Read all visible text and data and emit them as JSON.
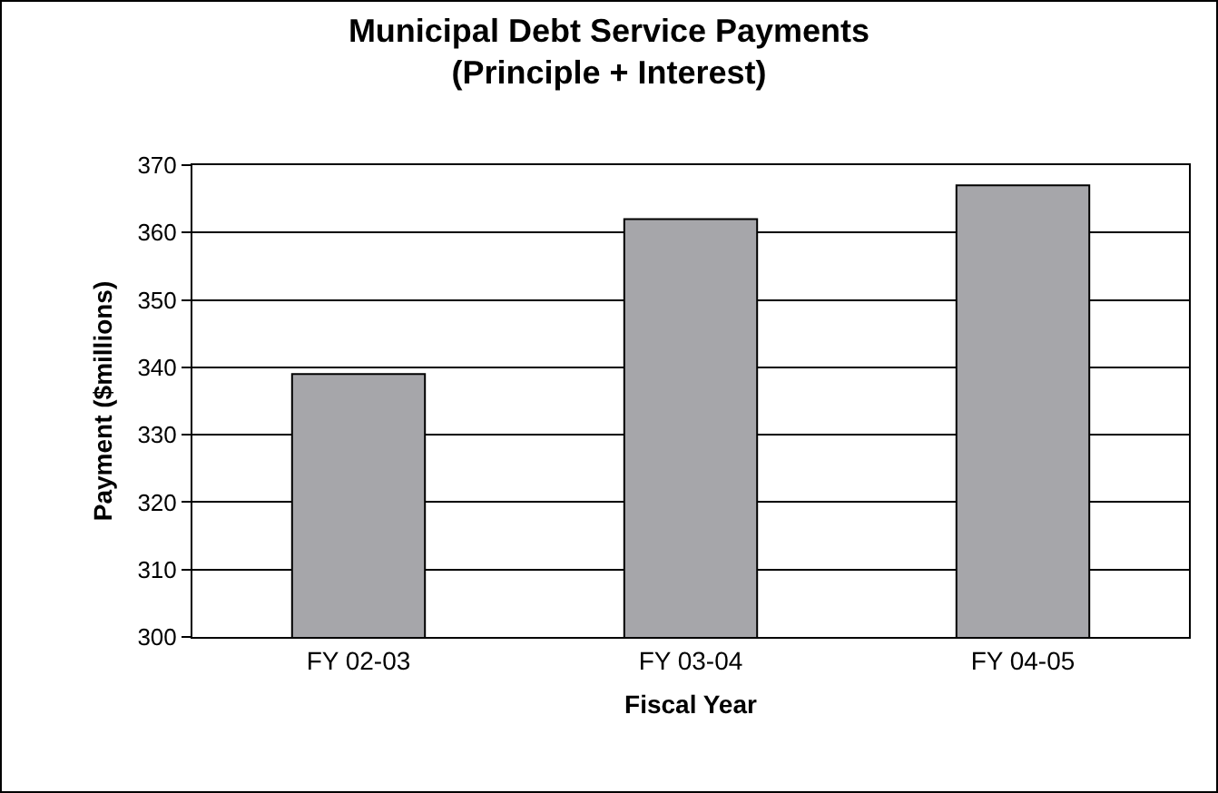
{
  "chart_data": {
    "type": "bar",
    "title": "Municipal Debt Service Payments\n(Principle + Interest)",
    "xlabel": "Fiscal Year",
    "ylabel": "Payment ($millions)",
    "categories": [
      "FY 02-03",
      "FY 03-04",
      "FY 04-05"
    ],
    "values": [
      339,
      362,
      367
    ],
    "color": "#a6a6aa",
    "ylim": [
      300,
      370
    ],
    "yticks": [
      300,
      310,
      320,
      330,
      340,
      350,
      360,
      370
    ],
    "grid": "y"
  }
}
